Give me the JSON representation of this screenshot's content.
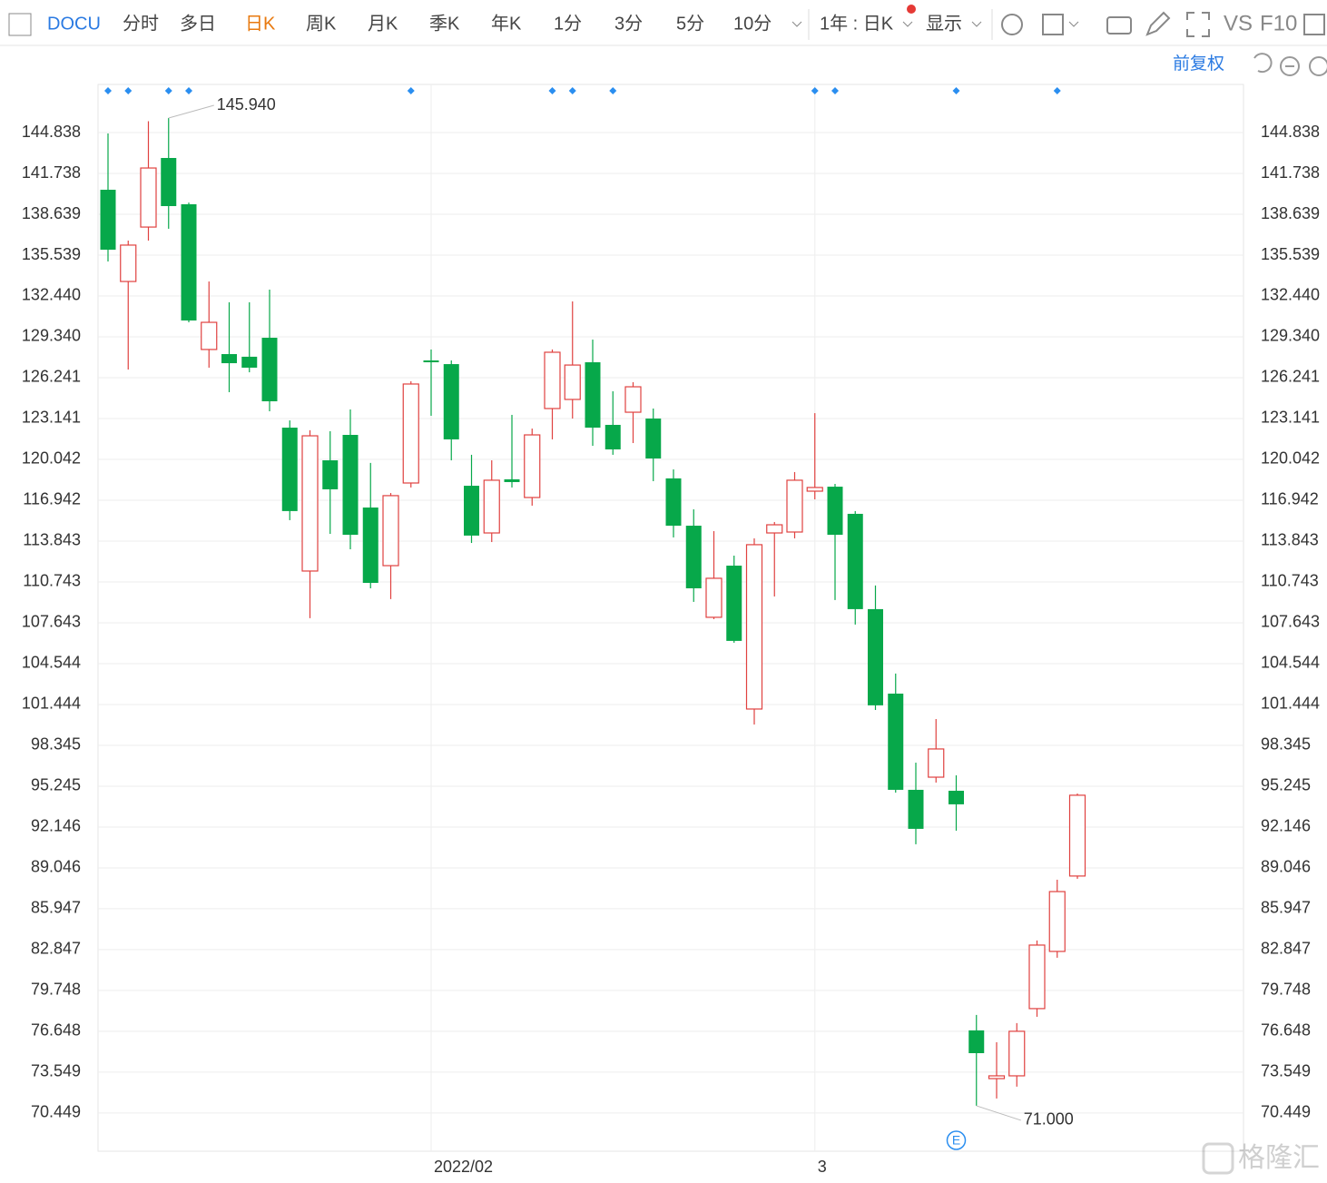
{
  "toolbar": {
    "symbol": "DOCU",
    "tabs": [
      "分时",
      "多日",
      "日K",
      "周K",
      "月K",
      "季K",
      "年K",
      "1分",
      "3分",
      "5分",
      "10分"
    ],
    "period": "1年 : 日K",
    "display": "显示",
    "vs": "VS",
    "f10": "F10"
  },
  "adjust": "前复权",
  "watermark": "格隆汇",
  "chart_data": {
    "type": "candlestick",
    "categories": [
      null,
      null,
      null,
      null,
      null,
      null,
      null,
      null,
      null,
      null,
      null,
      null,
      null,
      null,
      null,
      null,
      "2022/02",
      null,
      null,
      null,
      null,
      null,
      null,
      null,
      null,
      null,
      null,
      null,
      null,
      null,
      null,
      null,
      null,
      null,
      null,
      "3",
      null,
      null,
      null,
      null,
      null,
      null,
      null,
      null,
      null,
      null,
      null,
      null,
      null
    ],
    "open": [
      140.5,
      133.54,
      137.67,
      142.91,
      139.4,
      128.38,
      128.03,
      127.83,
      129.27,
      122.45,
      111.57,
      119.97,
      121.9,
      116.39,
      111.98,
      118.25,
      127.55,
      127.27,
      118.04,
      114.46,
      118.53,
      117.15,
      123.9,
      124.59,
      127.41,
      122.66,
      123.62,
      123.14,
      118.6,
      115.01,
      108.06,
      111.98,
      101.1,
      114.46,
      114.53,
      117.63,
      117.97,
      115.91,
      108.68,
      102.27,
      94.97,
      95.93,
      94.9,
      76.72,
      73.06,
      73.27,
      78.37,
      82.71,
      88.43
    ],
    "high": [
      144.77,
      136.64,
      145.7,
      145.94,
      139.53,
      133.54,
      131.96,
      131.96,
      132.92,
      123.0,
      122.25,
      122.18,
      123.83,
      119.77,
      117.49,
      125.97,
      128.38,
      127.55,
      120.39,
      119.97,
      123.42,
      122.38,
      128.38,
      132.03,
      129.13,
      125.21,
      125.9,
      123.9,
      119.28,
      116.25,
      114.6,
      112.74,
      114.05,
      115.29,
      119.08,
      123.55,
      118.18,
      116.12,
      110.47,
      103.79,
      97.03,
      100.34,
      96.07,
      77.89,
      75.82,
      77.27,
      83.54,
      88.15,
      94.69
    ],
    "low": [
      135.06,
      126.86,
      136.64,
      137.54,
      130.44,
      127.0,
      125.14,
      126.65,
      123.69,
      115.43,
      107.99,
      114.39,
      113.22,
      110.26,
      109.44,
      117.91,
      123.35,
      119.97,
      113.7,
      113.77,
      117.91,
      116.53,
      121.56,
      123.14,
      121.07,
      120.39,
      121.28,
      118.39,
      114.12,
      109.23,
      107.92,
      106.13,
      99.93,
      109.64,
      114.05,
      117.01,
      109.37,
      107.51,
      101.03,
      94.76,
      90.84,
      95.52,
      91.87,
      71.0,
      71.55,
      72.45,
      77.75,
      82.23,
      88.22
    ],
    "close": [
      135.95,
      136.3,
      142.15,
      139.26,
      130.58,
      130.44,
      127.34,
      127.0,
      124.45,
      116.12,
      121.83,
      117.77,
      114.32,
      110.67,
      117.29,
      125.76,
      127.41,
      121.56,
      114.26,
      118.46,
      118.32,
      121.9,
      128.17,
      127.2,
      122.45,
      120.8,
      125.55,
      120.11,
      115.01,
      110.26,
      111.02,
      106.27,
      113.57,
      115.08,
      118.46,
      117.91,
      114.32,
      108.68,
      101.38,
      94.97,
      92.01,
      98.07,
      93.87,
      74.99,
      73.27,
      76.65,
      83.19,
      87.25,
      94.56
    ],
    "up_color": "#e0413f",
    "down_color": "#07a84a",
    "annotations": {
      "max": "145.940",
      "min": "71.000"
    },
    "event_label": "E",
    "ylim": [
      67.55,
      148.49
    ],
    "yticks": [
      144.838,
      141.738,
      138.639,
      135.539,
      {
        "value": 132.44,
        "label": "132.440"
      },
      {
        "value": 129.34,
        "label": "129.340"
      },
      126.241,
      123.141,
      120.042,
      116.942,
      113.843,
      110.743,
      107.643,
      104.544,
      101.444,
      98.345,
      95.245,
      92.146,
      89.046,
      85.947,
      82.847,
      79.748,
      76.648,
      73.549,
      70.449
    ],
    "grid": true
  }
}
